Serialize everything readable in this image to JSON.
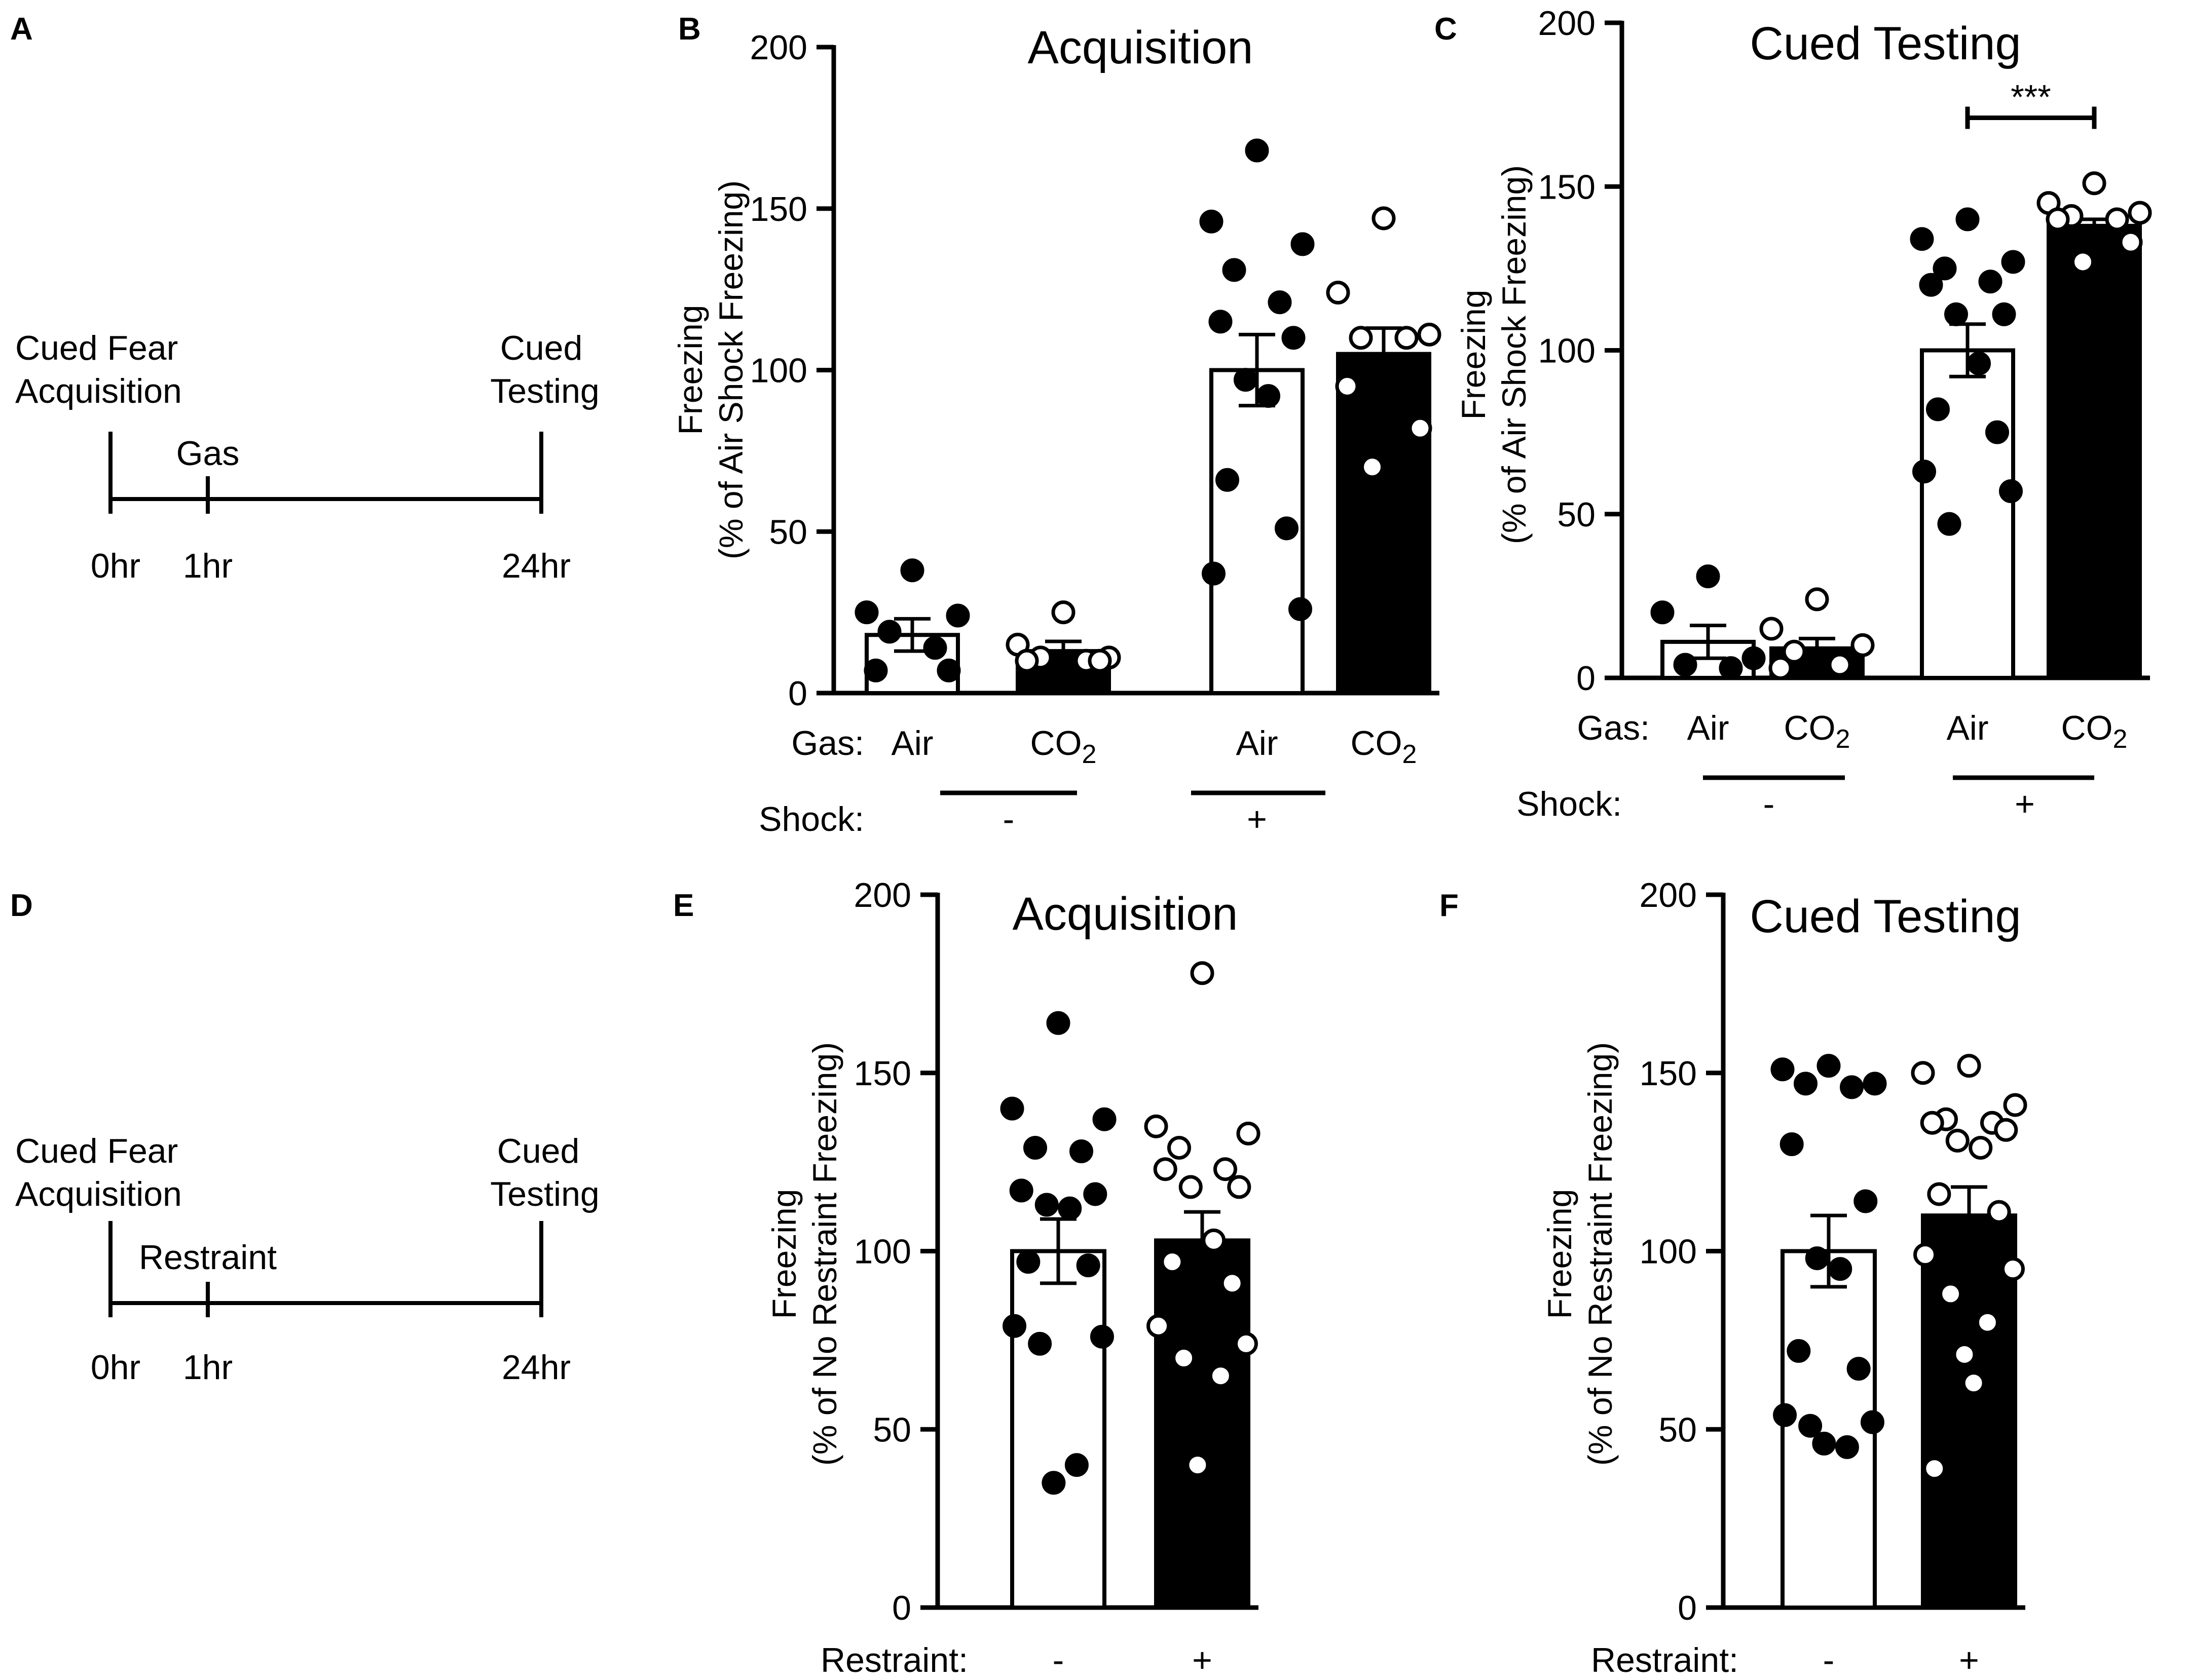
{
  "colors": {
    "filled_point": "#000000",
    "open_point": "#ffffff",
    "ink": "#000000",
    "white_bar": "#ffffff",
    "black_bar": "#000000"
  },
  "panel_labels": {
    "A": "A",
    "B": "B",
    "C": "C",
    "D": "D",
    "E": "E",
    "F": "F"
  },
  "timeline_A": {
    "left_label_line1": "Cued Fear",
    "left_label_line2": "Acquisition",
    "right_label_line1": "Cued",
    "right_label_line2": "Testing",
    "mid_label": "Gas",
    "t0": "0hr",
    "t1": "1hr",
    "t24": "24hr"
  },
  "timeline_D": {
    "left_label_line1": "Cued Fear",
    "left_label_line2": "Acquisition",
    "right_label_line1": "Cued",
    "right_label_line2": "Testing",
    "mid_label": "Restraint",
    "t0": "0hr",
    "t1": "1hr",
    "t24": "24hr"
  },
  "chart_data": [
    {
      "panel": "B",
      "type": "bar",
      "title": "Acquisition",
      "ylabel_line1": "Freezing",
      "ylabel_line2": "(% of Air Shock Freezing)",
      "ylim": [
        0,
        200
      ],
      "yticks": [
        0,
        50,
        100,
        150,
        200
      ],
      "row1_label": "Gas:",
      "row2_label": "Shock:",
      "categories": [
        "Air",
        "CO2",
        "Air",
        "CO2"
      ],
      "groups": [
        {
          "label": "-"
        },
        {
          "label": "+"
        }
      ],
      "series": [
        {
          "name": "Air / Shock -",
          "bar_color": "white",
          "point_style": "filled",
          "mean": 18,
          "sem": 5,
          "points": [
            38,
            25,
            24,
            19,
            14,
            7,
            7
          ]
        },
        {
          "name": "CO2 / Shock -",
          "bar_color": "black",
          "point_style": "open",
          "mean": 13,
          "sem": 3,
          "points": [
            25,
            15,
            11,
            11,
            10,
            10,
            10
          ]
        },
        {
          "name": "Air / Shock +",
          "bar_color": "white",
          "point_style": "filled",
          "mean": 100,
          "sem": 11,
          "points": [
            168,
            146,
            139,
            131,
            121,
            115,
            110,
            97,
            92,
            66,
            51,
            37,
            26
          ]
        },
        {
          "name": "CO2 / Shock +",
          "bar_color": "black",
          "point_style": "open",
          "mean": 105,
          "sem": 8,
          "points": [
            147,
            124,
            111,
            110,
            110,
            95,
            82,
            70
          ]
        }
      ],
      "significance": []
    },
    {
      "panel": "C",
      "type": "bar",
      "title": "Cued Testing",
      "ylabel_line1": "Freezing",
      "ylabel_line2": "(% of Air Shock Freezing)",
      "ylim": [
        0,
        200
      ],
      "yticks": [
        0,
        50,
        100,
        150,
        200
      ],
      "row1_label": "Gas:",
      "row2_label": "Shock:",
      "categories": [
        "Air",
        "CO2",
        "Air",
        "CO2"
      ],
      "groups": [
        {
          "label": "-"
        },
        {
          "label": "+"
        }
      ],
      "series": [
        {
          "name": "Air / Shock -",
          "bar_color": "white",
          "point_style": "filled",
          "mean": 11,
          "sem": 5,
          "points": [
            31,
            20,
            6,
            4,
            3
          ]
        },
        {
          "name": "CO2 / Shock -",
          "bar_color": "black",
          "point_style": "open",
          "mean": 9,
          "sem": 3,
          "points": [
            24,
            15,
            10,
            8,
            4,
            3
          ]
        },
        {
          "name": "Air / Shock +",
          "bar_color": "white",
          "point_style": "filled",
          "mean": 100,
          "sem": 8,
          "points": [
            140,
            134,
            127,
            125,
            121,
            120,
            111,
            111,
            96,
            82,
            75,
            63,
            57,
            47
          ]
        },
        {
          "name": "CO2 / Shock +",
          "bar_color": "black",
          "point_style": "open",
          "mean": 138,
          "sem": 2,
          "points": [
            151,
            145,
            142,
            141,
            140,
            140,
            133,
            127
          ]
        }
      ],
      "significance": [
        {
          "from": 2,
          "to": 3,
          "label": "***",
          "y": 171
        }
      ]
    },
    {
      "panel": "E",
      "type": "bar",
      "title": "Acquisition",
      "ylabel_line1": "Freezing",
      "ylabel_line2": "(% of No Restraint Freezing)",
      "ylim": [
        0,
        200
      ],
      "yticks": [
        0,
        50,
        100,
        150,
        200
      ],
      "row1_label": "Restraint:",
      "categories": [
        "-",
        "+"
      ],
      "series": [
        {
          "name": "No Restraint",
          "bar_color": "white",
          "point_style": "filled",
          "mean": 100,
          "sem": 9,
          "points": [
            164,
            140,
            137,
            129,
            128,
            117,
            116,
            113,
            112,
            97,
            96,
            79,
            76,
            74,
            40,
            35
          ]
        },
        {
          "name": "Restraint",
          "bar_color": "black",
          "point_style": "open",
          "mean": 103,
          "sem": 8,
          "points": [
            178,
            135,
            133,
            129,
            123,
            123,
            118,
            118,
            103,
            97,
            91,
            79,
            74,
            70,
            65,
            40
          ]
        }
      ],
      "significance": []
    },
    {
      "panel": "F",
      "type": "bar",
      "title": "Cued Testing",
      "ylabel_line1": "Freezing",
      "ylabel_line2": "(% of No Restraint Freezing)",
      "ylim": [
        0,
        200
      ],
      "yticks": [
        0,
        50,
        100,
        150,
        200
      ],
      "row1_label": "Restraint:",
      "categories": [
        "-",
        "+"
      ],
      "series": [
        {
          "name": "No Restraint",
          "bar_color": "white",
          "point_style": "filled",
          "mean": 100,
          "sem": 10,
          "points": [
            152,
            151,
            147,
            147,
            146,
            130,
            114,
            98,
            95,
            72,
            67,
            54,
            52,
            51,
            45,
            46
          ]
        },
        {
          "name": "Restraint",
          "bar_color": "black",
          "point_style": "open",
          "mean": 110,
          "sem": 8,
          "points": [
            152,
            150,
            141,
            137,
            136,
            136,
            134,
            131,
            129,
            116,
            111,
            99,
            95,
            88,
            80,
            71,
            63,
            39
          ]
        }
      ],
      "significance": []
    }
  ]
}
